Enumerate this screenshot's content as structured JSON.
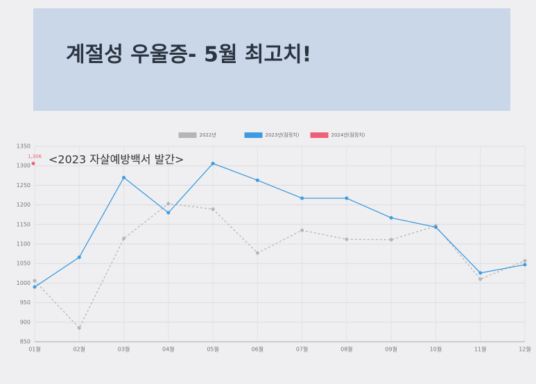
{
  "chart_data": {
    "type": "line",
    "title": "계절성 우울증- 5월 최고치!",
    "annotation": "<2023 자살예방백서 발간>",
    "categories": [
      "01월",
      "02월",
      "03월",
      "04월",
      "05월",
      "06월",
      "07월",
      "08월",
      "09월",
      "10월",
      "11월",
      "12월"
    ],
    "series": [
      {
        "name": "2022년",
        "color": "#b5b5b5",
        "dashed": true,
        "values": [
          1006,
          885,
          1114,
          1203,
          1189,
          1077,
          1135,
          1112,
          1111,
          1146,
          1010,
          1057
        ]
      },
      {
        "name": "2023년(잠정치)",
        "color": "#3d9be0",
        "dashed": false,
        "values": [
          990,
          1066,
          1270,
          1180,
          1306,
          1263,
          1217,
          1217,
          1167,
          1143,
          1026,
          1047
        ]
      },
      {
        "name": "2024년(잠정치)",
        "color": "#ee5f78",
        "dashed": false,
        "values": [
          1306,
          null,
          null,
          null,
          null,
          null,
          null,
          null,
          null,
          null,
          null,
          null
        ],
        "value_labels": [
          "1,306",
          null,
          null,
          null,
          null,
          null,
          null,
          null,
          null,
          null,
          null,
          null
        ]
      }
    ],
    "ylim": [
      850,
      1350
    ],
    "yticks": [
      850,
      900,
      950,
      1000,
      1050,
      1100,
      1150,
      1200,
      1250,
      1300,
      1350
    ],
    "grid": true,
    "legend": "top"
  }
}
